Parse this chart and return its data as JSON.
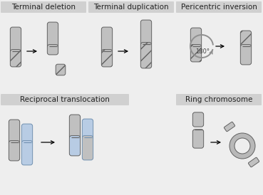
{
  "bg_color": "#eeeeee",
  "gray_fill": "#c0c0c0",
  "gray_edge": "#606060",
  "blue_fill": "#b8cce4",
  "blue_edge": "#7090b0",
  "title_bg": "#d0d0d0",
  "labels": {
    "td": "Terminal deletion",
    "tdup": "Terminal duplication",
    "pi": "Pericentric inversion",
    "rt": "Reciprocal translocation",
    "rc": "Ring chromosome"
  },
  "label_fontsize": 7.5
}
